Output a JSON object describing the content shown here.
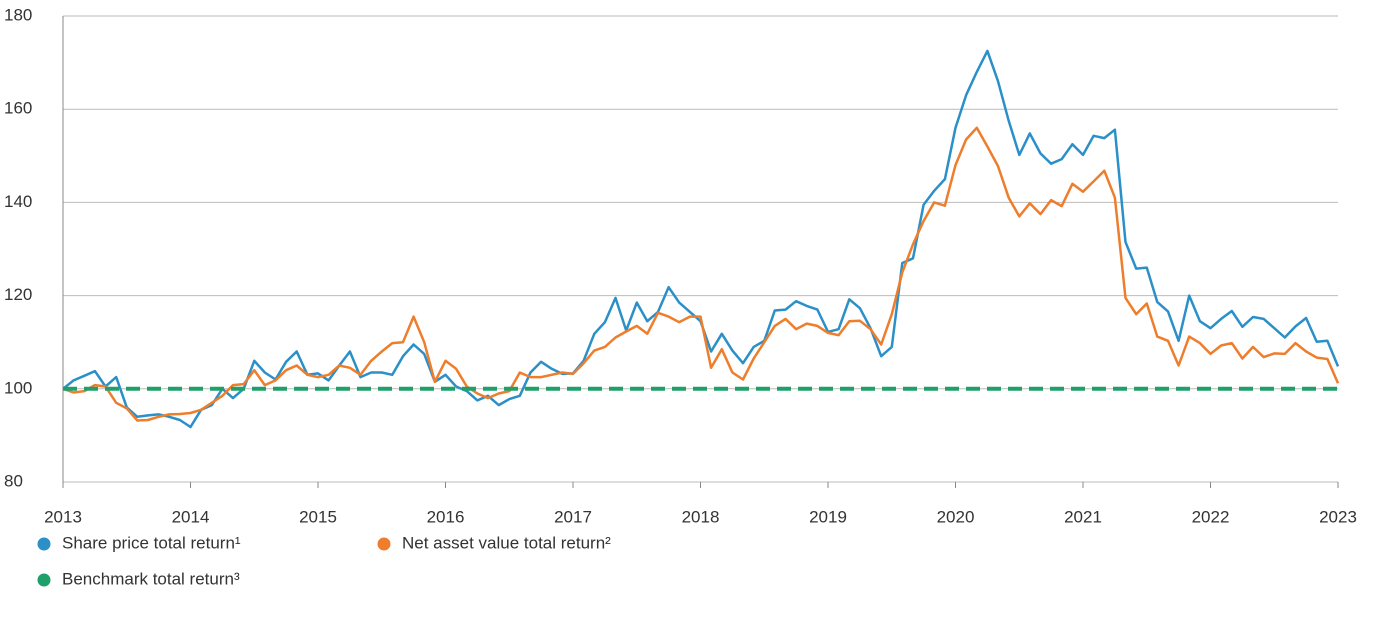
{
  "chart_data": {
    "type": "line",
    "x": [
      2013,
      2013.083,
      2013.167,
      2013.25,
      2013.333,
      2013.417,
      2013.5,
      2013.583,
      2013.667,
      2013.75,
      2013.833,
      2013.917,
      2014,
      2014.083,
      2014.167,
      2014.25,
      2014.333,
      2014.417,
      2014.5,
      2014.583,
      2014.667,
      2014.75,
      2014.833,
      2014.917,
      2015,
      2015.083,
      2015.167,
      2015.25,
      2015.333,
      2015.417,
      2015.5,
      2015.583,
      2015.667,
      2015.75,
      2015.833,
      2015.917,
      2016,
      2016.083,
      2016.167,
      2016.25,
      2016.333,
      2016.417,
      2016.5,
      2016.583,
      2016.667,
      2016.75,
      2016.833,
      2016.917,
      2017,
      2017.083,
      2017.167,
      2017.25,
      2017.333,
      2017.417,
      2017.5,
      2017.583,
      2017.667,
      2017.75,
      2017.833,
      2017.917,
      2018,
      2018.083,
      2018.167,
      2018.25,
      2018.333,
      2018.417,
      2018.5,
      2018.583,
      2018.667,
      2018.75,
      2018.833,
      2018.917,
      2019,
      2019.083,
      2019.167,
      2019.25,
      2019.333,
      2019.417,
      2019.5,
      2019.583,
      2019.667,
      2019.75,
      2019.833,
      2019.917,
      2020,
      2020.083,
      2020.167,
      2020.25,
      2020.333,
      2020.417,
      2020.5,
      2020.583,
      2020.667,
      2020.75,
      2020.833,
      2020.917,
      2021,
      2021.083,
      2021.167,
      2021.25,
      2021.333,
      2021.417,
      2021.5,
      2021.583,
      2021.667,
      2021.75,
      2021.833,
      2021.917,
      2022,
      2022.083,
      2022.167,
      2022.25,
      2022.333,
      2022.417,
      2022.5,
      2022.583,
      2022.667,
      2022.75,
      2022.833,
      2022.917,
      2023
    ],
    "series": [
      {
        "name": "Share price total return¹",
        "color": "#2b8fc8",
        "values": [
          100,
          101.8,
          102.8,
          103.8,
          100.5,
          102.5,
          96,
          94,
          94.3,
          94.5,
          94,
          93.3,
          91.8,
          95.5,
          96.5,
          100,
          98,
          100,
          106,
          103.5,
          102,
          105.8,
          108,
          103,
          103.3,
          101.8,
          105,
          108,
          102.5,
          103.5,
          103.5,
          103,
          107,
          109.5,
          107.5,
          101.5,
          103,
          100.5,
          99.5,
          97.5,
          98.5,
          96.5,
          97.8,
          98.5,
          103.5,
          105.8,
          104.3,
          103.2,
          103.3,
          106,
          111.8,
          114.3,
          119.5,
          112.5,
          118.5,
          114.5,
          116.5,
          121.8,
          118.5,
          116.5,
          114.5,
          108,
          111.8,
          108.2,
          105.5,
          109,
          110.3,
          116.8,
          117,
          118.8,
          117.8,
          117,
          112.2,
          112.8,
          119.2,
          117.3,
          113,
          107,
          109,
          127,
          128,
          139.5,
          142.5,
          145,
          156,
          163,
          168,
          172.5,
          166,
          157.5,
          150.2,
          154.8,
          150.5,
          148.3,
          149.3,
          152.5,
          150.2,
          154.3,
          153.8,
          155.6,
          131.5,
          125.8,
          126,
          118.6,
          116.6,
          110.3,
          120,
          114.5,
          113,
          115,
          116.7,
          113.3,
          115.4,
          115,
          113,
          111,
          113.4,
          115.2,
          110.1,
          110.3,
          104.8
        ]
      },
      {
        "name": "Net asset value total return²",
        "color": "#ee7d2c",
        "values": [
          100,
          99.2,
          99.5,
          100.8,
          100.5,
          97,
          95.8,
          93.2,
          93.3,
          94,
          94.5,
          94.6,
          94.8,
          95.5,
          97,
          98.5,
          100.8,
          101,
          104,
          100.8,
          101.8,
          104,
          105,
          103,
          102.5,
          103,
          105,
          104.5,
          103,
          106,
          108,
          109.8,
          110,
          115.5,
          110,
          101.5,
          106,
          104.3,
          100.5,
          99,
          98,
          99,
          99.5,
          103.5,
          102.5,
          102.5,
          103,
          103.5,
          103.2,
          105.5,
          108.2,
          109,
          111,
          112.3,
          113.5,
          111.8,
          116.3,
          115.5,
          114.3,
          115.5,
          115.5,
          104.5,
          108.5,
          103.5,
          102,
          106.5,
          110,
          113.5,
          115,
          112.8,
          114,
          113.5,
          112,
          111.5,
          114.5,
          114.6,
          112.8,
          109.5,
          116,
          125,
          131,
          136,
          140,
          139.3,
          148,
          153.5,
          156,
          152,
          147.8,
          141,
          137,
          139.8,
          137.5,
          140.5,
          139.2,
          144,
          142.3,
          144.5,
          146.8,
          141,
          119.5,
          116,
          118.3,
          111.2,
          110.3,
          105,
          111.2,
          109.8,
          107.5,
          109.3,
          109.8,
          106.5,
          109,
          106.8,
          107.6,
          107.5,
          109.8,
          108,
          106.7,
          106.4,
          101.2
        ]
      },
      {
        "name": "Benchmark total return³",
        "color": "#1fa06a",
        "dashed": true,
        "x": [
          2013,
          2023
        ],
        "values": [
          100,
          100
        ]
      }
    ],
    "xlim": [
      2013,
      2023
    ],
    "xticks": [
      2013,
      2014,
      2015,
      2016,
      2017,
      2018,
      2019,
      2020,
      2021,
      2022,
      2023
    ],
    "ylim": [
      80,
      180
    ],
    "yticks": [
      80,
      100,
      120,
      140,
      160,
      180
    ],
    "grid": true,
    "legend": "bottom-left"
  }
}
